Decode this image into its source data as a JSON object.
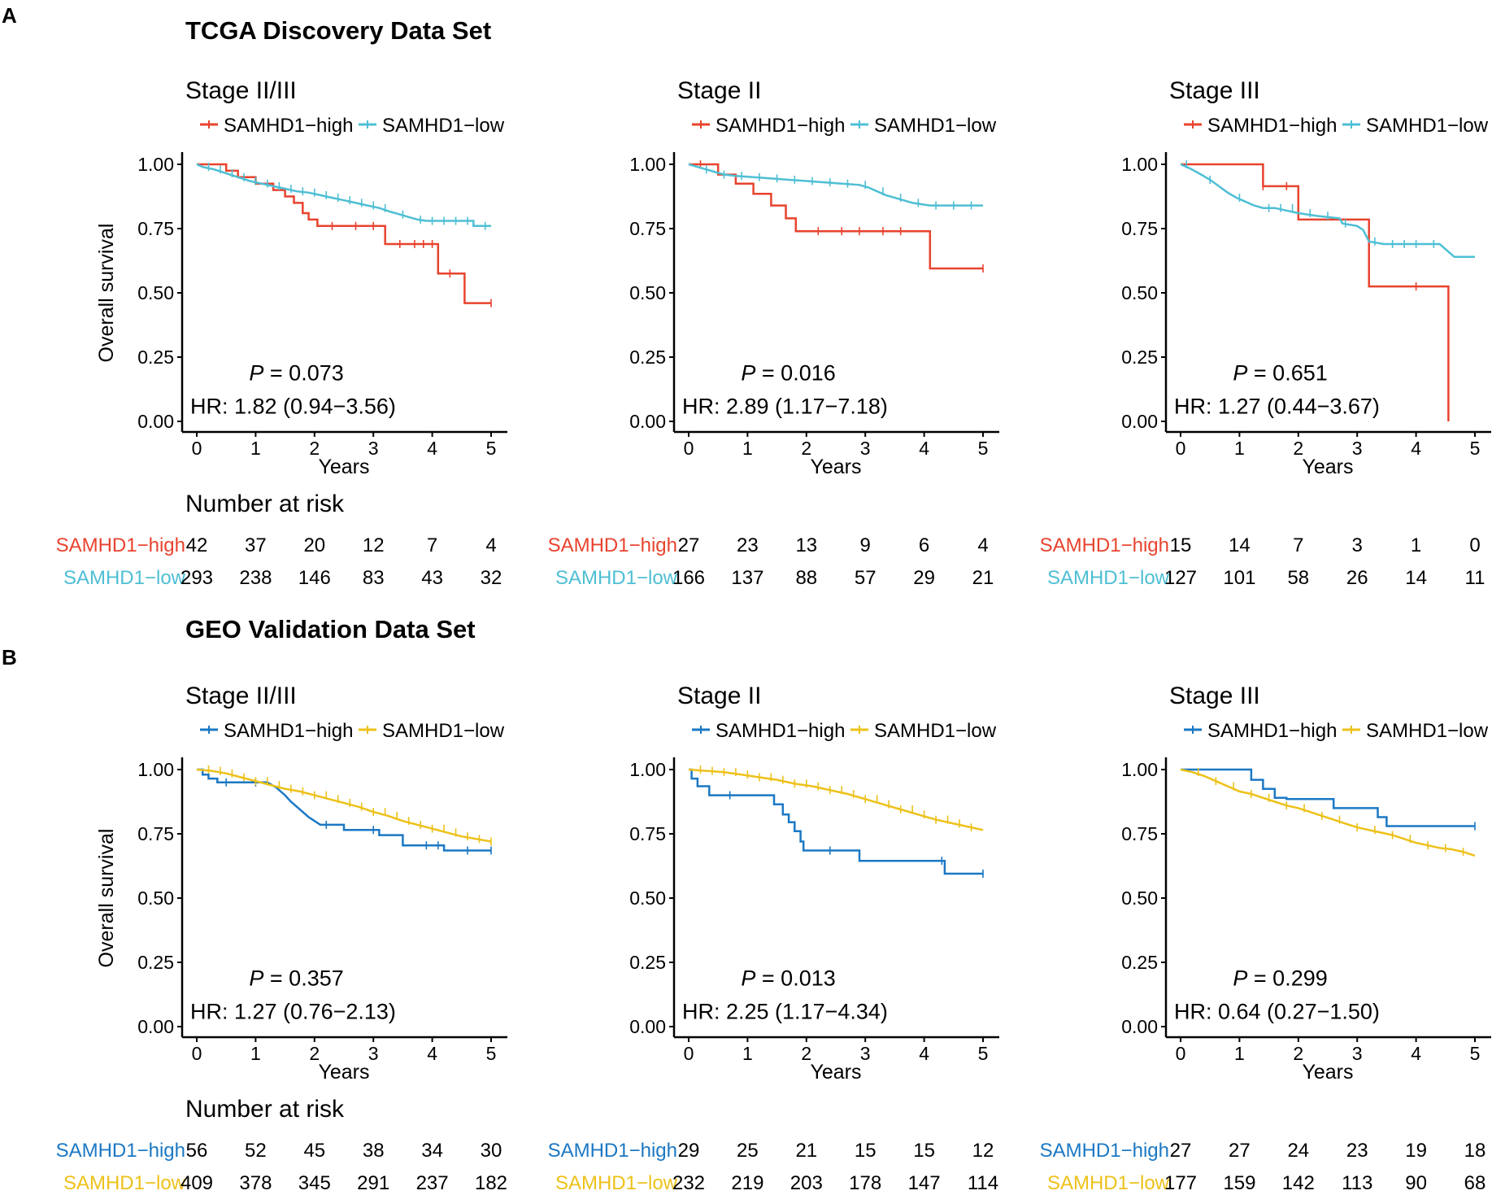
{
  "chart_data": {
    "type": "line",
    "figure_sections": [
      {
        "letter": "A",
        "title": "TCGA Discovery Data Set",
        "colors": {
          "high": "#E8432E",
          "low": "#4EBFD4"
        }
      },
      {
        "letter": "B",
        "title": "GEO Validation Data Set",
        "colors": {
          "high": "#1B78C4",
          "low": "#EDC11A"
        }
      }
    ],
    "common": {
      "ylabel": "Overall survival",
      "xlabel": "Years",
      "xlim": [
        0,
        5
      ],
      "ylim": [
        0,
        1
      ],
      "x_ticks": [
        "0",
        "1",
        "2",
        "3",
        "4",
        "5"
      ],
      "y_ticks": [
        "0.00",
        "0.25",
        "0.50",
        "0.75",
        "1.00"
      ],
      "risk_title": "Number at risk",
      "p_symbol": "P",
      "legend_high": "SAMHD1−high",
      "legend_low": "SAMHD1−low"
    },
    "plots": [
      {
        "title": "Stage II/III",
        "p_value": " = 0.073",
        "hr": "HR: 1.82 (0.94−3.56)",
        "risk_high": [
          "42",
          "37",
          "20",
          "12",
          "7",
          "4"
        ],
        "risk_low": [
          "293",
          "238",
          "146",
          "83",
          "43",
          "32"
        ],
        "series": [
          {
            "name": "SAMHD1−high",
            "color": "#E8432E",
            "x": [
              0,
              0.5,
              0.5,
              0.7,
              0.7,
              1.0,
              1.0,
              1.3,
              1.3,
              1.5,
              1.5,
              1.65,
              1.65,
              1.8,
              1.8,
              1.9,
              1.9,
              2.05,
              2.05,
              3.2,
              3.2,
              4.1,
              4.1,
              4.55,
              4.55,
              5.0
            ],
            "y": [
              1.0,
              1.0,
              0.975,
              0.975,
              0.95,
              0.95,
              0.925,
              0.925,
              0.9,
              0.9,
              0.875,
              0.875,
              0.85,
              0.85,
              0.81,
              0.81,
              0.785,
              0.785,
              0.76,
              0.76,
              0.69,
              0.69,
              0.575,
              0.575,
              0.46,
              0.46
            ],
            "censor_x": [
              2.3,
              2.7,
              3.0,
              3.45,
              3.7,
              3.85,
              4.0,
              4.3,
              5.0
            ]
          },
          {
            "name": "SAMHD1−low",
            "color": "#4EBFD4",
            "x": [
              0,
              0.1,
              0.3,
              0.5,
              0.7,
              0.9,
              1.1,
              1.3,
              1.5,
              1.7,
              1.9,
              2.1,
              2.3,
              2.5,
              2.7,
              2.9,
              3.1,
              3.3,
              3.45,
              3.6,
              3.75,
              3.9,
              4.2,
              4.7,
              4.7,
              5.0
            ],
            "y": [
              1.0,
              0.99,
              0.98,
              0.965,
              0.95,
              0.935,
              0.925,
              0.915,
              0.905,
              0.895,
              0.89,
              0.88,
              0.87,
              0.86,
              0.85,
              0.84,
              0.83,
              0.815,
              0.805,
              0.795,
              0.785,
              0.78,
              0.78,
              0.78,
              0.76,
              0.76
            ],
            "censor_x": [
              0.2,
              0.4,
              0.6,
              0.8,
              1.0,
              1.2,
              1.4,
              1.6,
              1.8,
              2.0,
              2.2,
              2.4,
              2.6,
              2.8,
              3.0,
              3.2,
              3.5,
              3.8,
              4.0,
              4.2,
              4.4,
              4.6,
              4.9
            ]
          }
        ]
      },
      {
        "title": "Stage II",
        "p_value": " = 0.016",
        "hr": "HR: 2.89 (1.17−7.18)",
        "risk_high": [
          "27",
          "23",
          "13",
          "9",
          "6",
          "4"
        ],
        "risk_low": [
          "166",
          "137",
          "88",
          "57",
          "29",
          "21"
        ],
        "series": [
          {
            "name": "SAMHD1−high",
            "color": "#E8432E",
            "x": [
              0,
              0.5,
              0.5,
              0.8,
              0.8,
              1.1,
              1.1,
              1.4,
              1.4,
              1.65,
              1.65,
              1.82,
              1.82,
              4.1,
              4.1,
              5.0
            ],
            "y": [
              1.0,
              1.0,
              0.96,
              0.96,
              0.925,
              0.925,
              0.885,
              0.885,
              0.84,
              0.84,
              0.79,
              0.79,
              0.74,
              0.74,
              0.595,
              0.595
            ],
            "censor_x": [
              0.2,
              2.2,
              2.6,
              2.9,
              3.3,
              3.6,
              5.0
            ]
          },
          {
            "name": "SAMHD1−low",
            "color": "#4EBFD4",
            "x": [
              0,
              0.15,
              0.3,
              0.45,
              0.6,
              0.8,
              1.1,
              1.4,
              1.7,
              2.0,
              2.3,
              2.6,
              2.9,
              3.05,
              3.2,
              3.35,
              3.5,
              3.65,
              3.8,
              3.95,
              4.1,
              5.0
            ],
            "y": [
              1.0,
              0.99,
              0.98,
              0.97,
              0.96,
              0.955,
              0.95,
              0.945,
              0.94,
              0.935,
              0.93,
              0.925,
              0.92,
              0.91,
              0.895,
              0.88,
              0.87,
              0.86,
              0.85,
              0.845,
              0.84,
              0.84
            ],
            "censor_x": [
              0.3,
              0.6,
              0.9,
              1.2,
              1.5,
              1.8,
              2.1,
              2.4,
              2.7,
              3.0,
              3.3,
              3.6,
              3.9,
              4.2,
              4.5,
              4.8
            ]
          }
        ]
      },
      {
        "title": "Stage III",
        "p_value": " = 0.651",
        "hr": "HR: 1.27 (0.44−3.67)",
        "risk_high": [
          "15",
          "14",
          "7",
          "3",
          "1",
          "0"
        ],
        "risk_low": [
          "127",
          "101",
          "58",
          "26",
          "14",
          "11"
        ],
        "series": [
          {
            "name": "SAMHD1−high",
            "color": "#E8432E",
            "x": [
              0,
              1.4,
              1.4,
              2.0,
              2.0,
              3.2,
              3.2,
              4.55,
              4.55
            ],
            "y": [
              1.0,
              1.0,
              0.915,
              0.915,
              0.785,
              0.785,
              0.525,
              0.525,
              0.0
            ],
            "censor_x": [
              1.4,
              1.8,
              4.0
            ]
          },
          {
            "name": "SAMHD1−low",
            "color": "#4EBFD4",
            "x": [
              0,
              0.15,
              0.35,
              0.5,
              0.65,
              0.8,
              0.95,
              1.1,
              1.25,
              1.4,
              1.6,
              2.0,
              2.3,
              2.7,
              2.75,
              3.0,
              3.1,
              3.2,
              3.45,
              4.4,
              4.65,
              5.0
            ],
            "y": [
              1.0,
              0.985,
              0.96,
              0.94,
              0.915,
              0.89,
              0.87,
              0.855,
              0.84,
              0.83,
              0.83,
              0.81,
              0.8,
              0.79,
              0.77,
              0.76,
              0.745,
              0.7,
              0.69,
              0.69,
              0.64,
              0.64
            ],
            "censor_x": [
              0.1,
              0.5,
              1.0,
              1.5,
              1.7,
              1.9,
              2.2,
              2.5,
              2.8,
              3.3,
              3.6,
              3.8,
              4.0,
              4.3
            ]
          }
        ]
      },
      {
        "title": "Stage II/III",
        "p_value": " = 0.357",
        "hr": "HR: 1.27 (0.76−2.13)",
        "risk_high": [
          "56",
          "52",
          "45",
          "38",
          "34",
          "30"
        ],
        "risk_low": [
          "409",
          "378",
          "345",
          "291",
          "237",
          "182"
        ],
        "series": [
          {
            "name": "SAMHD1−high",
            "color": "#1B78C4",
            "x": [
              0,
              0.1,
              0.1,
              0.2,
              0.2,
              0.35,
              0.35,
              1.2,
              1.35,
              1.5,
              1.6,
              1.7,
              1.8,
              1.9,
              2.0,
              2.1,
              2.5,
              2.5,
              3.1,
              3.1,
              3.5,
              3.5,
              4.2,
              4.2,
              5.0
            ],
            "y": [
              1.0,
              1.0,
              0.98,
              0.98,
              0.965,
              0.965,
              0.95,
              0.95,
              0.93,
              0.9,
              0.875,
              0.855,
              0.835,
              0.815,
              0.8,
              0.785,
              0.785,
              0.765,
              0.765,
              0.745,
              0.745,
              0.705,
              0.705,
              0.685,
              0.685
            ],
            "censor_x": [
              0.5,
              1.0,
              2.2,
              3.0,
              3.9,
              4.1,
              4.6,
              5.0
            ]
          },
          {
            "name": "SAMHD1−low",
            "color": "#EDC11A",
            "x": [
              0,
              0.25,
              0.5,
              0.75,
              1.0,
              1.25,
              1.5,
              1.75,
              2.0,
              2.25,
              2.5,
              2.75,
              3.0,
              3.25,
              3.5,
              3.75,
              4.0,
              4.25,
              4.5,
              4.75,
              5.0
            ],
            "y": [
              1.0,
              0.995,
              0.985,
              0.97,
              0.955,
              0.94,
              0.925,
              0.915,
              0.9,
              0.885,
              0.87,
              0.855,
              0.835,
              0.82,
              0.8,
              0.785,
              0.77,
              0.755,
              0.74,
              0.73,
              0.72
            ],
            "censor_x": [
              0.2,
              0.4,
              0.6,
              0.8,
              1.0,
              1.2,
              1.4,
              1.6,
              1.8,
              2.0,
              2.2,
              2.4,
              2.6,
              2.8,
              3.0,
              3.2,
              3.4,
              3.6,
              3.8,
              4.0,
              4.2,
              4.4,
              4.6,
              4.8,
              5.0
            ]
          }
        ]
      },
      {
        "title": "Stage II",
        "p_value": " = 0.013",
        "hr": "HR: 2.25 (1.17−4.34)",
        "risk_high": [
          "29",
          "25",
          "21",
          "15",
          "15",
          "12"
        ],
        "risk_low": [
          "232",
          "219",
          "203",
          "178",
          "147",
          "114"
        ],
        "series": [
          {
            "name": "SAMHD1−high",
            "color": "#1B78C4",
            "x": [
              0,
              0.05,
              0.05,
              0.15,
              0.15,
              0.35,
              0.35,
              1.45,
              1.45,
              1.6,
              1.6,
              1.7,
              1.7,
              1.8,
              1.8,
              1.9,
              1.9,
              1.95,
              1.95,
              2.9,
              2.9,
              4.35,
              4.35,
              5.0
            ],
            "y": [
              1.0,
              1.0,
              0.965,
              0.965,
              0.935,
              0.935,
              0.9,
              0.9,
              0.865,
              0.865,
              0.825,
              0.825,
              0.795,
              0.795,
              0.76,
              0.76,
              0.72,
              0.72,
              0.685,
              0.685,
              0.645,
              0.645,
              0.595,
              0.595
            ],
            "censor_x": [
              0.7,
              2.4,
              4.3,
              5.0
            ]
          },
          {
            "name": "SAMHD1−low",
            "color": "#EDC11A",
            "x": [
              0,
              0.3,
              0.6,
              0.9,
              1.2,
              1.5,
              1.8,
              2.1,
              2.4,
              2.7,
              3.0,
              3.3,
              3.6,
              3.9,
              4.2,
              4.5,
              4.8,
              5.0
            ],
            "y": [
              1.0,
              0.995,
              0.99,
              0.98,
              0.97,
              0.96,
              0.945,
              0.935,
              0.92,
              0.905,
              0.885,
              0.865,
              0.845,
              0.825,
              0.805,
              0.79,
              0.775,
              0.765
            ],
            "censor_x": [
              0.2,
              0.4,
              0.6,
              0.8,
              1.0,
              1.2,
              1.4,
              1.6,
              1.8,
              2.0,
              2.2,
              2.4,
              2.6,
              2.8,
              3.0,
              3.2,
              3.4,
              3.6,
              3.8,
              4.0,
              4.2,
              4.4,
              4.6,
              4.8
            ]
          }
        ]
      },
      {
        "title": "Stage III",
        "p_value": " = 0.299",
        "hr": "HR: 0.64 (0.27−1.50)",
        "risk_high": [
          "27",
          "27",
          "24",
          "23",
          "19",
          "18"
        ],
        "risk_low": [
          "177",
          "159",
          "142",
          "113",
          "90",
          "68"
        ],
        "series": [
          {
            "name": "SAMHD1−high",
            "color": "#1B78C4",
            "x": [
              0,
              1.2,
              1.2,
              1.4,
              1.4,
              1.6,
              1.6,
              1.8,
              1.8,
              2.6,
              2.6,
              3.35,
              3.35,
              3.5,
              3.5,
              5.0
            ],
            "y": [
              1.0,
              1.0,
              0.96,
              0.96,
              0.925,
              0.925,
              0.89,
              0.89,
              0.885,
              0.885,
              0.85,
              0.85,
              0.815,
              0.815,
              0.78,
              0.78
            ],
            "censor_x": [
              5.0
            ]
          },
          {
            "name": "SAMHD1−low",
            "color": "#EDC11A",
            "x": [
              0,
              0.2,
              0.4,
              0.6,
              0.8,
              1.0,
              1.2,
              1.4,
              1.6,
              1.8,
              2.0,
              2.2,
              2.4,
              2.6,
              2.8,
              3.0,
              3.2,
              3.4,
              3.6,
              3.8,
              4.0,
              4.2,
              4.4,
              4.6,
              4.8,
              5.0
            ],
            "y": [
              1.0,
              0.99,
              0.975,
              0.955,
              0.935,
              0.915,
              0.905,
              0.89,
              0.875,
              0.86,
              0.85,
              0.835,
              0.82,
              0.805,
              0.79,
              0.775,
              0.765,
              0.755,
              0.745,
              0.73,
              0.715,
              0.705,
              0.695,
              0.69,
              0.68,
              0.665
            ],
            "censor_x": [
              0.3,
              0.6,
              0.9,
              1.2,
              1.5,
              1.8,
              2.1,
              2.4,
              2.7,
              3.0,
              3.3,
              3.6,
              3.9,
              4.2,
              4.5,
              4.8
            ]
          }
        ]
      }
    ]
  }
}
